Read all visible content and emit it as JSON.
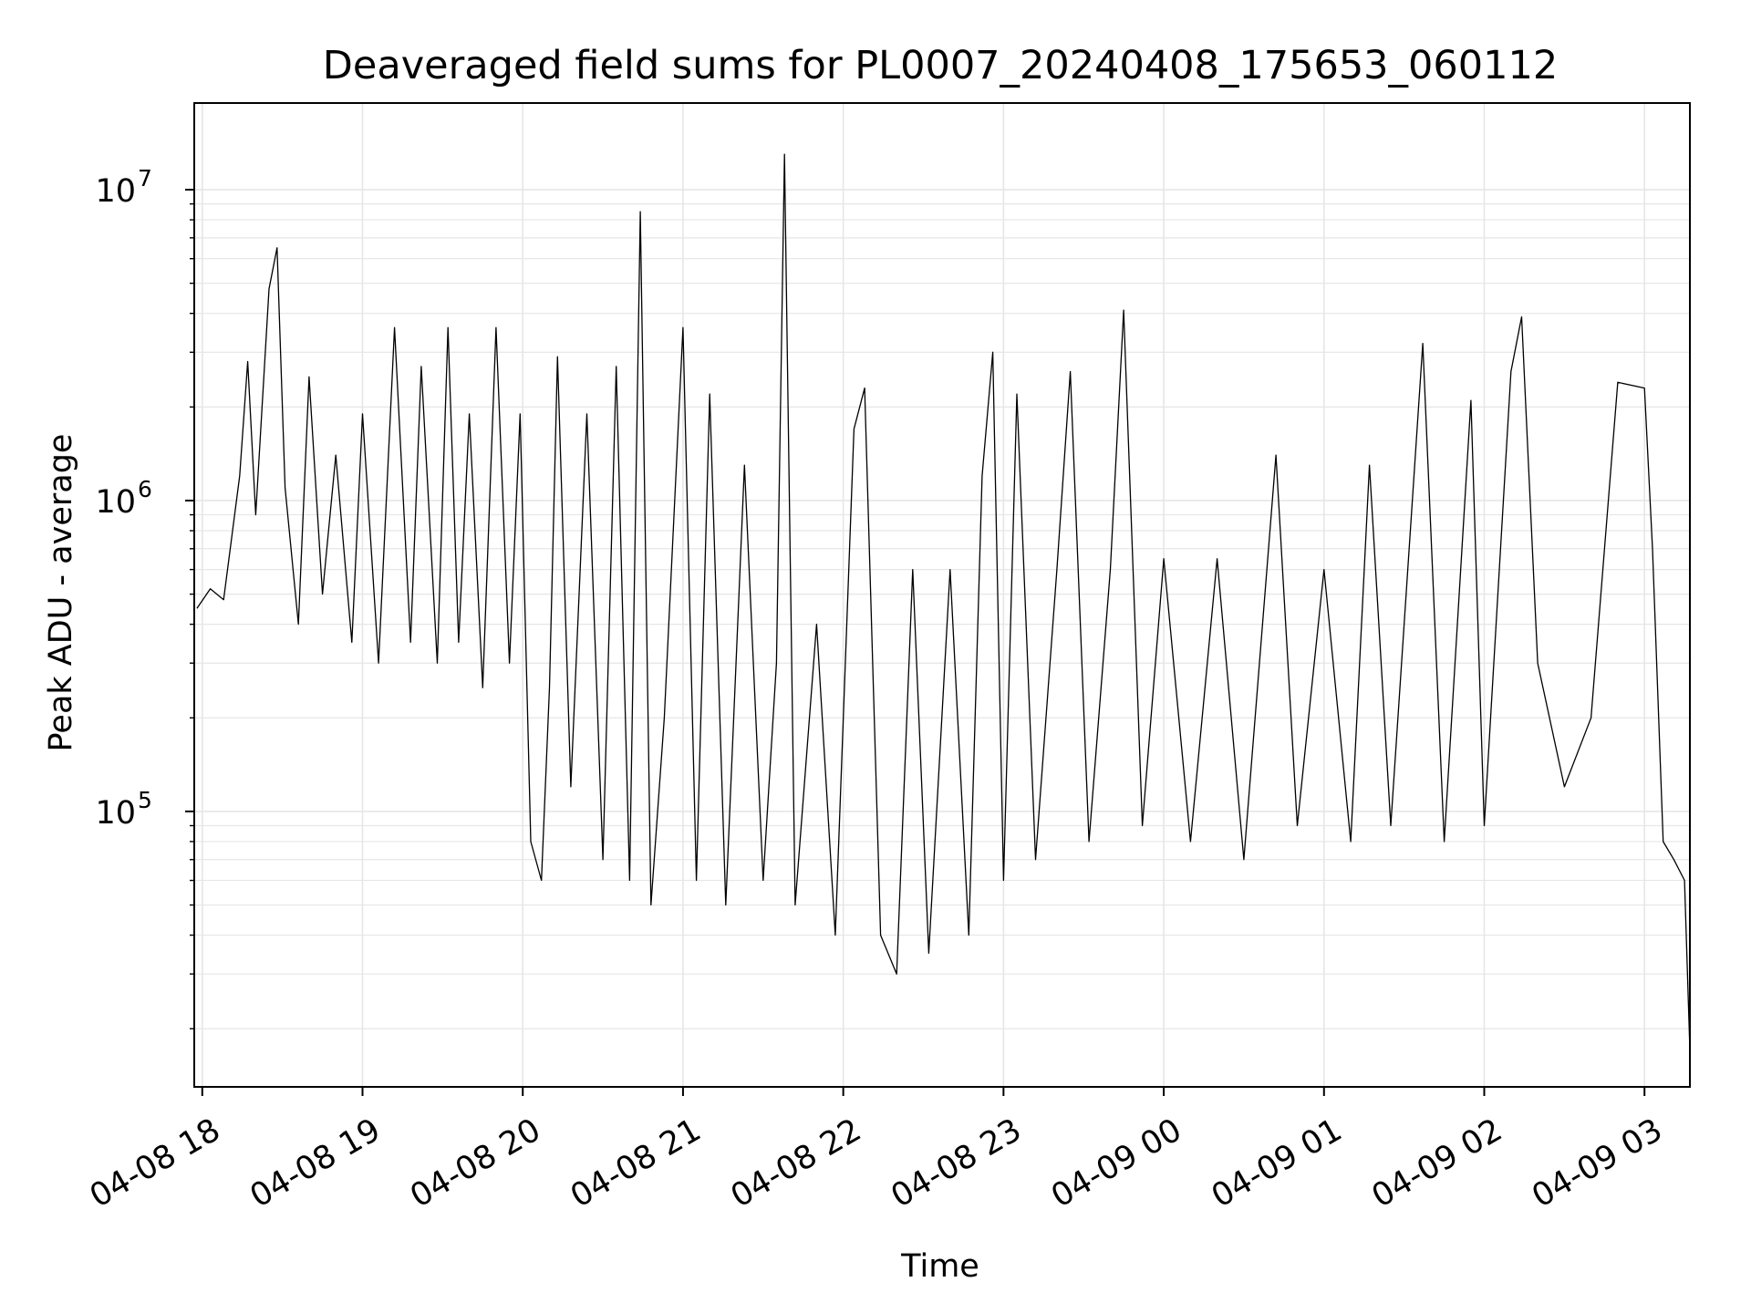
{
  "chart_data": {
    "type": "line",
    "title": "Deaveraged field sums for PL0007_20240408_175653_060112",
    "xlabel": "Time",
    "ylabel": "Peak ADU - average",
    "yscale": "log",
    "grid": true,
    "line_color": "#000000",
    "grid_color": "#e6e6e6",
    "x_tick_labels": [
      "04-08 18",
      "04-08 19",
      "04-08 20",
      "04-08 21",
      "04-08 22",
      "04-08 23",
      "04-09 00",
      "04-09 01",
      "04-09 02",
      "04-09 03"
    ],
    "x_tick_values": [
      "2024-04-08T18:00",
      "2024-04-08T19:00",
      "2024-04-08T20:00",
      "2024-04-08T21:00",
      "2024-04-08T22:00",
      "2024-04-08T23:00",
      "2024-04-09T00:00",
      "2024-04-09T01:00",
      "2024-04-09T02:00",
      "2024-04-09T03:00"
    ],
    "xlim": [
      "2024-04-08T17:57",
      "2024-04-09T03:17"
    ],
    "y_tick_values": [
      100000,
      1000000,
      10000000
    ],
    "y_tick_labels": [
      {
        "base": "10",
        "exp": "5"
      },
      {
        "base": "10",
        "exp": "6"
      },
      {
        "base": "10",
        "exp": "7"
      }
    ],
    "ylim": [
      13000,
      19000000
    ],
    "series": [
      {
        "values": [
          [
            "2024-04-08T17:58",
            450000
          ],
          [
            "2024-04-08T18:03",
            520000
          ],
          [
            "2024-04-08T18:08",
            480000
          ],
          [
            "2024-04-08T18:14",
            1200000
          ],
          [
            "2024-04-08T18:17",
            2800000
          ],
          [
            "2024-04-08T18:20",
            900000
          ],
          [
            "2024-04-08T18:25",
            4800000
          ],
          [
            "2024-04-08T18:28",
            6500000
          ],
          [
            "2024-04-08T18:31",
            1100000
          ],
          [
            "2024-04-08T18:36",
            400000
          ],
          [
            "2024-04-08T18:40",
            2500000
          ],
          [
            "2024-04-08T18:45",
            500000
          ],
          [
            "2024-04-08T18:50",
            1400000
          ],
          [
            "2024-04-08T18:56",
            350000
          ],
          [
            "2024-04-08T19:00",
            1900000
          ],
          [
            "2024-04-08T19:06",
            300000
          ],
          [
            "2024-04-08T19:12",
            3600000
          ],
          [
            "2024-04-08T19:18",
            350000
          ],
          [
            "2024-04-08T19:22",
            2700000
          ],
          [
            "2024-04-08T19:28",
            300000
          ],
          [
            "2024-04-08T19:32",
            3600000
          ],
          [
            "2024-04-08T19:36",
            350000
          ],
          [
            "2024-04-08T19:40",
            1900000
          ],
          [
            "2024-04-08T19:45",
            250000
          ],
          [
            "2024-04-08T19:50",
            3600000
          ],
          [
            "2024-04-08T19:55",
            300000
          ],
          [
            "2024-04-08T19:59",
            1900000
          ],
          [
            "2024-04-08T20:03",
            80000
          ],
          [
            "2024-04-08T20:07",
            60000
          ],
          [
            "2024-04-08T20:10",
            250000
          ],
          [
            "2024-04-08T20:13",
            2900000
          ],
          [
            "2024-04-08T20:18",
            120000
          ],
          [
            "2024-04-08T20:24",
            1900000
          ],
          [
            "2024-04-08T20:30",
            70000
          ],
          [
            "2024-04-08T20:35",
            2700000
          ],
          [
            "2024-04-08T20:40",
            60000
          ],
          [
            "2024-04-08T20:44",
            8500000
          ],
          [
            "2024-04-08T20:48",
            50000
          ],
          [
            "2024-04-08T20:53",
            200000
          ],
          [
            "2024-04-08T21:00",
            3600000
          ],
          [
            "2024-04-08T21:05",
            60000
          ],
          [
            "2024-04-08T21:10",
            2200000
          ],
          [
            "2024-04-08T21:16",
            50000
          ],
          [
            "2024-04-08T21:23",
            1300000
          ],
          [
            "2024-04-08T21:30",
            60000
          ],
          [
            "2024-04-08T21:35",
            300000
          ],
          [
            "2024-04-08T21:38",
            13000000
          ],
          [
            "2024-04-08T21:42",
            50000
          ],
          [
            "2024-04-08T21:50",
            400000
          ],
          [
            "2024-04-08T21:57",
            40000
          ],
          [
            "2024-04-08T22:04",
            1700000
          ],
          [
            "2024-04-08T22:08",
            2300000
          ],
          [
            "2024-04-08T22:14",
            40000
          ],
          [
            "2024-04-08T22:20",
            30000
          ],
          [
            "2024-04-08T22:26",
            600000
          ],
          [
            "2024-04-08T22:32",
            35000
          ],
          [
            "2024-04-08T22:40",
            600000
          ],
          [
            "2024-04-08T22:47",
            40000
          ],
          [
            "2024-04-08T22:52",
            1200000
          ],
          [
            "2024-04-08T22:56",
            3000000
          ],
          [
            "2024-04-08T23:00",
            60000
          ],
          [
            "2024-04-08T23:05",
            2200000
          ],
          [
            "2024-04-08T23:12",
            70000
          ],
          [
            "2024-04-08T23:20",
            600000
          ],
          [
            "2024-04-08T23:25",
            2600000
          ],
          [
            "2024-04-08T23:32",
            80000
          ],
          [
            "2024-04-08T23:40",
            600000
          ],
          [
            "2024-04-08T23:45",
            4100000
          ],
          [
            "2024-04-08T23:52",
            90000
          ],
          [
            "2024-04-09T00:00",
            650000
          ],
          [
            "2024-04-09T00:10",
            80000
          ],
          [
            "2024-04-09T00:20",
            650000
          ],
          [
            "2024-04-09T00:30",
            70000
          ],
          [
            "2024-04-09T00:42",
            1400000
          ],
          [
            "2024-04-09T00:50",
            90000
          ],
          [
            "2024-04-09T01:00",
            600000
          ],
          [
            "2024-04-09T01:10",
            80000
          ],
          [
            "2024-04-09T01:17",
            1300000
          ],
          [
            "2024-04-09T01:25",
            90000
          ],
          [
            "2024-04-09T01:37",
            3200000
          ],
          [
            "2024-04-09T01:45",
            80000
          ],
          [
            "2024-04-09T01:55",
            2100000
          ],
          [
            "2024-04-09T02:00",
            90000
          ],
          [
            "2024-04-09T02:10",
            2600000
          ],
          [
            "2024-04-09T02:14",
            3900000
          ],
          [
            "2024-04-09T02:20",
            300000
          ],
          [
            "2024-04-09T02:30",
            120000
          ],
          [
            "2024-04-09T02:40",
            200000
          ],
          [
            "2024-04-09T02:50",
            2400000
          ],
          [
            "2024-04-09T03:00",
            2300000
          ],
          [
            "2024-04-09T03:03",
            700000
          ],
          [
            "2024-04-09T03:07",
            80000
          ],
          [
            "2024-04-09T03:11",
            70000
          ],
          [
            "2024-04-09T03:15",
            60000
          ],
          [
            "2024-04-09T03:17",
            17000
          ]
        ]
      }
    ]
  }
}
